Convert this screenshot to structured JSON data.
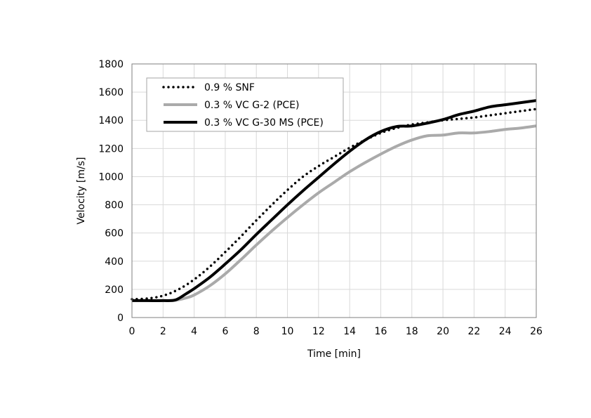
{
  "chart_data": {
    "type": "line",
    "xlabel": "Time [min]",
    "ylabel": "Velocity [m/s]",
    "xlim": [
      0,
      26
    ],
    "ylim": [
      0,
      1800
    ],
    "xticks": [
      0,
      2,
      4,
      6,
      8,
      10,
      12,
      14,
      16,
      18,
      20,
      22,
      24,
      26
    ],
    "yticks": [
      0,
      200,
      400,
      600,
      800,
      1000,
      1200,
      1400,
      1600,
      1800
    ],
    "grid": true,
    "legend_position": "top-left",
    "series": [
      {
        "name": "0.9 % SNF",
        "color": "#000000",
        "style": "dotted",
        "x": [
          0,
          1,
          2,
          3,
          4,
          5,
          6,
          7,
          8,
          9,
          10,
          11,
          12,
          13,
          14,
          15,
          16,
          17,
          18,
          19,
          20,
          21,
          22,
          23,
          24,
          25,
          26
        ],
        "y": [
          130,
          135,
          155,
          200,
          270,
          360,
          465,
          575,
          690,
          800,
          905,
          1000,
          1075,
          1140,
          1205,
          1260,
          1310,
          1345,
          1370,
          1385,
          1400,
          1410,
          1420,
          1435,
          1450,
          1465,
          1480
        ]
      },
      {
        "name": "0.3 % VC G-2 (PCE)",
        "color": "#aaaaaa",
        "style": "solid",
        "x": [
          0,
          1,
          2,
          2.8,
          3.5,
          4,
          5,
          6,
          7,
          8,
          9,
          10,
          11,
          12,
          13,
          14,
          15,
          16,
          17,
          18,
          19,
          20,
          21,
          22,
          23,
          24,
          25,
          26
        ],
        "y": [
          120,
          120,
          120,
          123,
          140,
          160,
          225,
          310,
          410,
          515,
          615,
          710,
          800,
          885,
          960,
          1035,
          1100,
          1160,
          1215,
          1260,
          1290,
          1295,
          1310,
          1310,
          1320,
          1335,
          1345,
          1360
        ]
      },
      {
        "name": "0.3 % VC G-30 MS (PCE)",
        "color": "#000000",
        "style": "solid",
        "x": [
          0,
          1,
          2,
          2.8,
          3.5,
          4,
          5,
          6,
          7,
          8,
          9,
          10,
          11,
          12,
          13,
          14,
          15,
          16,
          17,
          18,
          19,
          20,
          21,
          22,
          23,
          24,
          25,
          26
        ],
        "y": [
          120,
          120,
          120,
          125,
          170,
          205,
          285,
          380,
          480,
          590,
          695,
          800,
          900,
          995,
          1090,
          1180,
          1260,
          1320,
          1355,
          1360,
          1380,
          1405,
          1440,
          1465,
          1495,
          1510,
          1525,
          1540
        ]
      }
    ]
  }
}
